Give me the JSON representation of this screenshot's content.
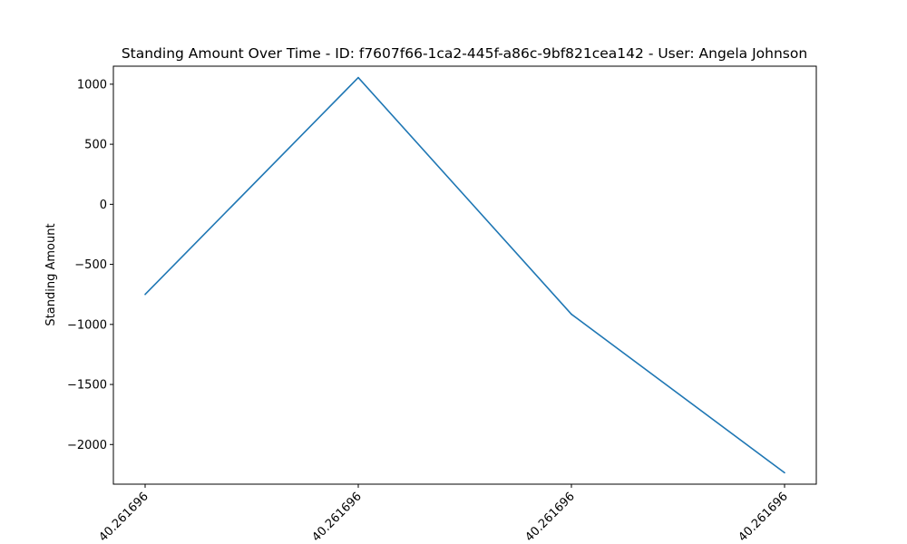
{
  "chart_data": {
    "type": "line",
    "title": "Standing Amount Over Time - ID: f7607f66-1ca2-445f-a86c-9bf821cea142 - User: Angela Johnson",
    "xlabel": "",
    "ylabel": "Standing Amount",
    "x_tick_labels": [
      "40.261696",
      "40.261696",
      "40.261696",
      "40.261696"
    ],
    "y_ticks": [
      1000,
      500,
      0,
      -500,
      -1000,
      -1500,
      -2000
    ],
    "y_tick_labels": [
      "1000",
      "500",
      "0",
      "−500",
      "−1000",
      "−1500",
      "−2000"
    ],
    "ylim": [
      -2330,
      1150
    ],
    "grid": false,
    "series": [
      {
        "color": "#1f77b4",
        "values": [
          -750,
          1055,
          -915,
          -2235
        ]
      }
    ]
  }
}
